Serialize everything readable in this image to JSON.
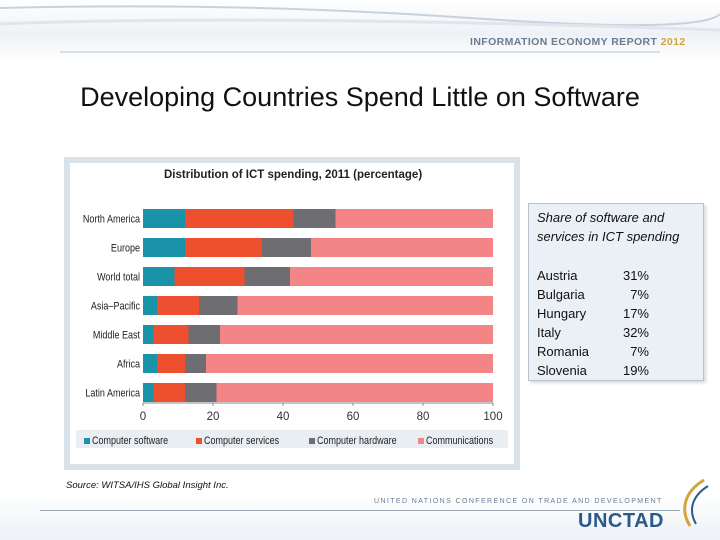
{
  "header": {
    "report_label": "INFORMATION ECONOMY REPORT",
    "report_year": "2012"
  },
  "page_title": "Developing Countries Spend Little on Software",
  "chart_data": {
    "type": "bar",
    "orientation": "horizontal",
    "stacked": true,
    "title": "Distribution of ICT spending, 2011 (percentage)",
    "xlabel": "",
    "ylabel": "",
    "xlim": [
      0,
      100
    ],
    "xticks": [
      0,
      20,
      40,
      60,
      80,
      100
    ],
    "categories": [
      "North America",
      "Europe",
      "World total",
      "Asia–Pacific",
      "Middle East",
      "Africa",
      "Latin America"
    ],
    "series": [
      {
        "name": "Computer software",
        "color": "#1a93a8",
        "values": [
          12,
          12,
          9,
          4,
          3,
          4,
          3
        ]
      },
      {
        "name": "Computer services",
        "color": "#ee4f2e",
        "values": [
          31,
          22,
          20,
          12,
          10,
          8,
          9
        ]
      },
      {
        "name": "Computer hardware",
        "color": "#6e6e72",
        "values": [
          12,
          14,
          13,
          11,
          9,
          6,
          9
        ]
      },
      {
        "name": "Communications",
        "color": "#f38586",
        "values": [
          45,
          52,
          58,
          73,
          78,
          82,
          79
        ]
      }
    ],
    "legend_position": "bottom",
    "grid": false
  },
  "side_box": {
    "title": "Share of software and services in ICT spending",
    "rows": [
      {
        "country": "Austria",
        "value": "31%"
      },
      {
        "country": "Bulgaria",
        "value": "7%"
      },
      {
        "country": "Hungary",
        "value": "17%"
      },
      {
        "country": "Italy",
        "value": "32%"
      },
      {
        "country": "Romania",
        "value": "7%"
      },
      {
        "country": "Slovenia",
        "value": "19%"
      }
    ]
  },
  "source": "Source: WITSA/IHS Global Insight Inc.",
  "footer": {
    "conference": "UNITED NATIONS CONFERENCE ON TRADE AND DEVELOPMENT",
    "org": "UNCTAD"
  }
}
